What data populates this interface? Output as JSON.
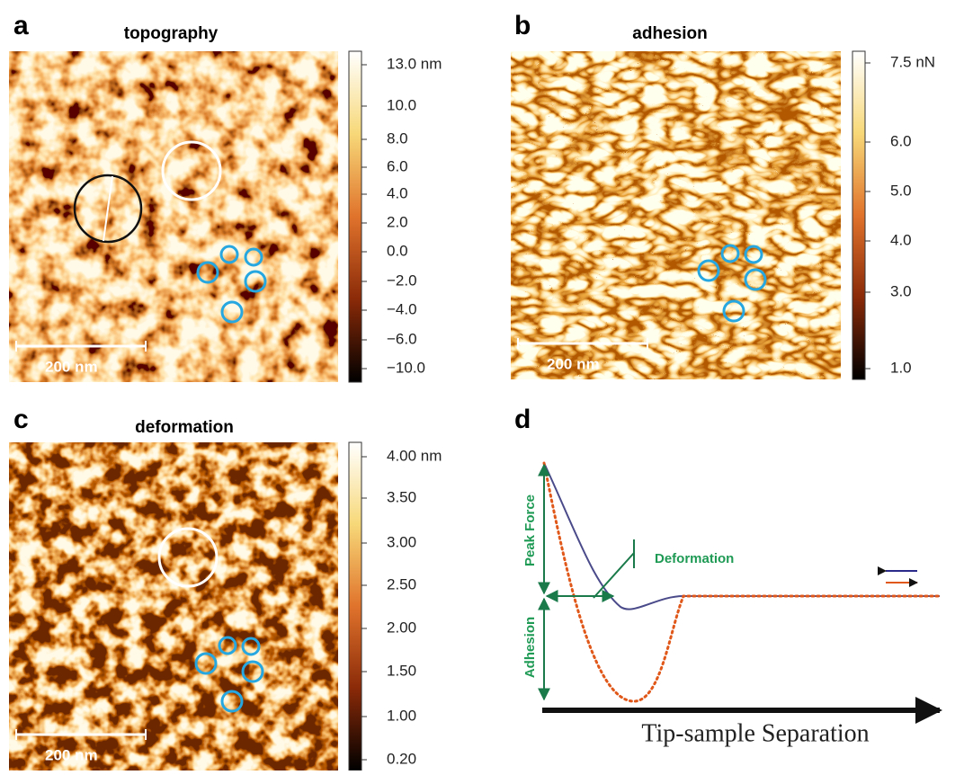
{
  "panels": [
    {
      "label": "a",
      "title": "topography",
      "scale_bar": "200 nm",
      "colorbar_ticks": [
        "13.0 nm",
        "10.0",
        "8.0",
        "6.0",
        "4.0",
        "2.0",
        "0.0",
        "−2.0",
        "−4.0",
        "−6.0",
        "−10.0"
      ]
    },
    {
      "label": "b",
      "title": "adhesion",
      "scale_bar": "200 nm",
      "colorbar_ticks": [
        "7.5 nN",
        "6.0",
        "5.0",
        "4.0",
        "3.0",
        "1.0"
      ]
    },
    {
      "label": "c",
      "title": "deformation",
      "scale_bar": "200 nm",
      "colorbar_ticks": [
        "4.00 nm",
        "3.50",
        "3.00",
        "2.50",
        "2.00",
        "1.50",
        "1.00",
        "0.20"
      ]
    }
  ],
  "schematic": {
    "label": "d",
    "peak_force": "Peak Force",
    "adhesion": "Adhesion",
    "deformation": "Deformation",
    "x_axis": "Tip-sample Separation"
  }
}
